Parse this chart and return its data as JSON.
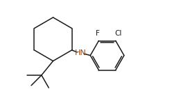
{
  "background_color": "#ffffff",
  "line_color": "#1a1a1a",
  "nh_color": "#8B4513",
  "label_f": "F",
  "label_cl": "Cl",
  "label_hn": "HN",
  "figsize": [
    2.48,
    1.45
  ],
  "dpi": 100,
  "lw": 1.1,
  "fs": 7.5,
  "xlim": [
    0,
    10.5
  ],
  "ylim": [
    0,
    6.2
  ]
}
